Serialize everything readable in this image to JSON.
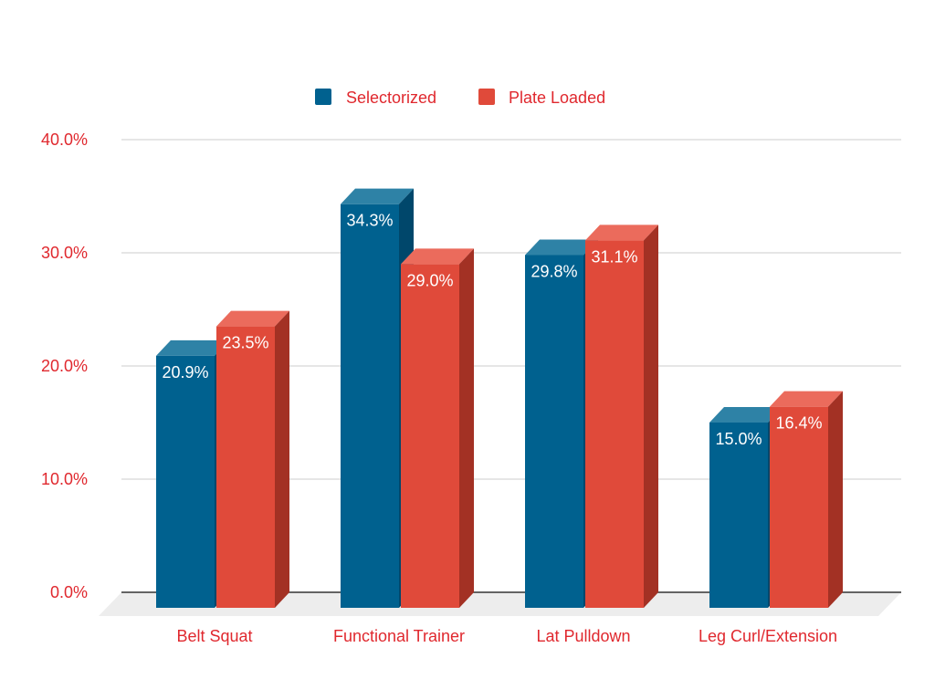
{
  "chart_data": {
    "type": "bar",
    "categories": [
      "Belt Squat",
      "Functional Trainer",
      "Lat Pulldown",
      "Leg Curl/Extension"
    ],
    "series": [
      {
        "name": "Selectorized",
        "values": [
          20.9,
          34.3,
          29.8,
          15.0
        ],
        "labels": [
          "20.9%",
          "34.3%",
          "29.8%",
          "15.0%"
        ],
        "color": "#00618F",
        "top_color": "#2E82A6",
        "side_color": "#00476B"
      },
      {
        "name": "Plate Loaded",
        "values": [
          23.5,
          29.0,
          31.1,
          16.4
        ],
        "labels": [
          "23.5%",
          "29.0%",
          "31.1%",
          "16.4%"
        ],
        "color": "#E04A3A",
        "top_color": "#EB6B5C",
        "side_color": "#A33124"
      }
    ],
    "y_ticks": [
      0,
      10,
      20,
      30,
      40
    ],
    "y_tick_labels": [
      "0.0%",
      "10.0%",
      "20.0%",
      "30.0%",
      "40.0%"
    ],
    "ylim": [
      0,
      40
    ],
    "grid": true,
    "legend_position": "top-center",
    "style_3d": true,
    "label_color": "#E0282E",
    "data_label_color": "#FFFFFF",
    "grid_color": "#CCCCCC",
    "floor_color": "#EDEDED"
  }
}
